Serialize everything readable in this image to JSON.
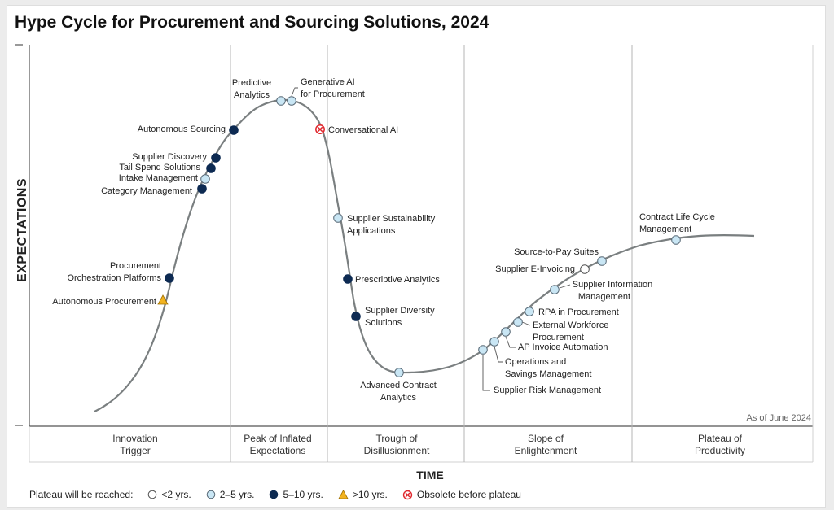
{
  "title": "Hype Cycle for Procurement and Sourcing Solutions, 2024",
  "y_axis_label": "EXPECTATIONS",
  "x_axis_label": "TIME",
  "as_of": "As of June 2024",
  "phases": [
    {
      "line1": "Innovation",
      "line2": "Trigger"
    },
    {
      "line1": "Peak of Inflated",
      "line2": "Expectations"
    },
    {
      "line1": "Trough of",
      "line2": "Disillusionment"
    },
    {
      "line1": "Slope of",
      "line2": "Enlightenment"
    },
    {
      "line1": "Plateau of",
      "line2": "Productivity"
    }
  ],
  "legend": {
    "title": "Plateau will be reached:",
    "items": [
      {
        "key": "lt2",
        "label": "<2 yrs."
      },
      {
        "key": "2to5",
        "label": "2–5 yrs."
      },
      {
        "key": "5to10",
        "label": "5–10 yrs."
      },
      {
        "key": "gt10",
        "label": ">10 yrs."
      },
      {
        "key": "obsolete",
        "label": "Obsolete before plateau"
      }
    ]
  },
  "colors": {
    "lt2": "#ffffff",
    "2to5": "#c9e6f4",
    "5to10": "#0d2a52",
    "gt10": "#f2b320",
    "obsolete": "#e0262c",
    "curve": "#7a7f80",
    "divider": "#b5b5b5"
  },
  "technologies": [
    {
      "name": "Autonomous Procurement",
      "category": "gt10"
    },
    {
      "name": "Procurement Orchestration Platforms",
      "category": "5to10"
    },
    {
      "name": "Category Management",
      "category": "5to10"
    },
    {
      "name": "Intake Management",
      "category": "2to5"
    },
    {
      "name": "Tail Spend Solutions",
      "category": "5to10"
    },
    {
      "name": "Supplier Discovery",
      "category": "5to10"
    },
    {
      "name": "Autonomous Sourcing",
      "category": "5to10"
    },
    {
      "name": "Predictive Analytics",
      "category": "2to5"
    },
    {
      "name": "Generative AI for Procurement",
      "category": "2to5"
    },
    {
      "name": "Conversational AI",
      "category": "obsolete"
    },
    {
      "name": "Supplier Sustainability Applications",
      "category": "2to5"
    },
    {
      "name": "Prescriptive Analytics",
      "category": "5to10"
    },
    {
      "name": "Supplier Diversity Solutions",
      "category": "5to10"
    },
    {
      "name": "Advanced Contract Analytics",
      "category": "2to5"
    },
    {
      "name": "Supplier Risk Management",
      "category": "2to5"
    },
    {
      "name": "Operations and Savings Management",
      "category": "2to5"
    },
    {
      "name": "AP Invoice Automation",
      "category": "2to5"
    },
    {
      "name": "External Workforce Procurement",
      "category": "2to5"
    },
    {
      "name": "RPA in Procurement",
      "category": "2to5"
    },
    {
      "name": "Supplier Information Management",
      "category": "2to5"
    },
    {
      "name": "Supplier E-Invoicing",
      "category": "lt2"
    },
    {
      "name": "Source-to-Pay Suites",
      "category": "2to5"
    },
    {
      "name": "Contract Life Cycle Management",
      "category": "2to5"
    }
  ]
}
